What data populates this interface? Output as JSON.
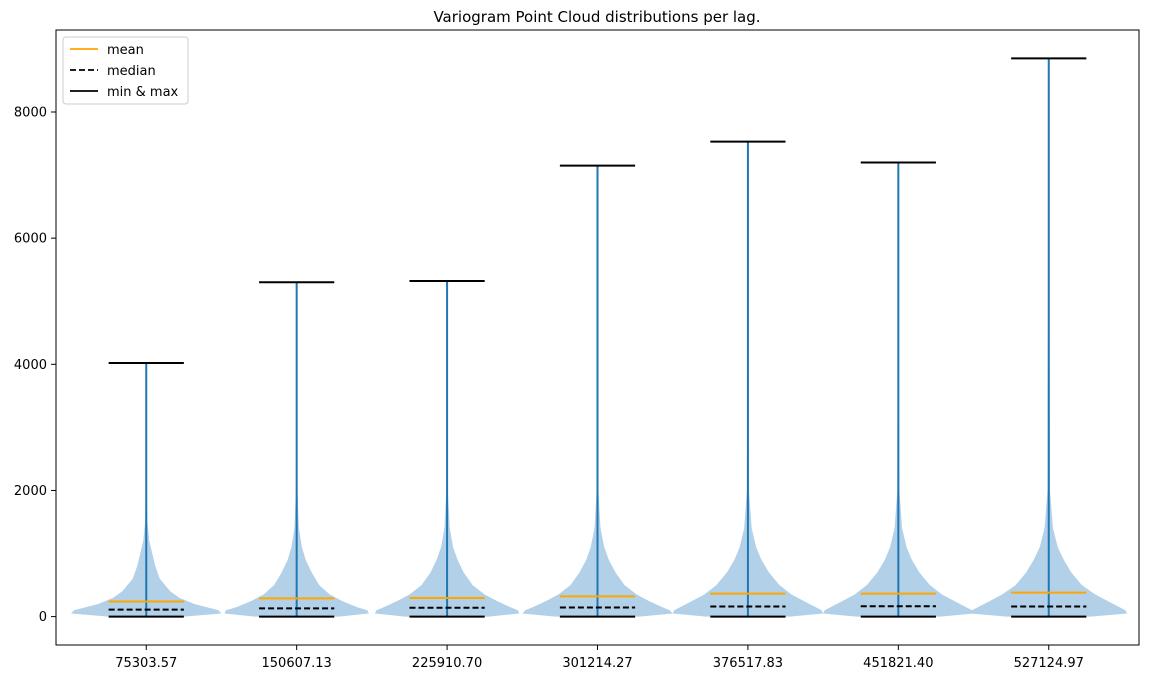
{
  "chart_data": {
    "type": "violin",
    "title": "Variogram Point Cloud distributions per lag.",
    "xlabel": "",
    "ylabel": "",
    "categories": [
      "75303.57",
      "150607.13",
      "225910.70",
      "301214.27",
      "376517.83",
      "451821.40",
      "527124.97"
    ],
    "y_ticks": [
      0,
      2000,
      4000,
      6000,
      8000
    ],
    "ylim": [
      -450,
      9300
    ],
    "grid": false,
    "legend_position": "top-left",
    "legend": [
      {
        "label": "mean",
        "style": "solid",
        "color": "#ffa500"
      },
      {
        "label": "median",
        "style": "dashed",
        "color": "#000000"
      },
      {
        "label": "min & max",
        "style": "solid",
        "color": "#000000"
      }
    ],
    "series": [
      {
        "category": "75303.57",
        "min": 0,
        "max": 4020,
        "mean": 240,
        "median": 110,
        "shape": [
          [
            0,
            0.25
          ],
          [
            50,
            0.5
          ],
          [
            100,
            0.48
          ],
          [
            150,
            0.4
          ],
          [
            200,
            0.32
          ],
          [
            300,
            0.22
          ],
          [
            400,
            0.16
          ],
          [
            600,
            0.09
          ],
          [
            800,
            0.06
          ],
          [
            1000,
            0.04
          ],
          [
            1200,
            0.02
          ],
          [
            1500,
            0.008
          ],
          [
            2000,
            0.003
          ],
          [
            4020,
            0.001
          ]
        ]
      },
      {
        "category": "150607.13",
        "min": 0,
        "max": 5300,
        "mean": 290,
        "median": 130,
        "shape": [
          [
            0,
            0.28
          ],
          [
            50,
            0.48
          ],
          [
            100,
            0.47
          ],
          [
            150,
            0.4
          ],
          [
            250,
            0.3
          ],
          [
            350,
            0.22
          ],
          [
            500,
            0.15
          ],
          [
            700,
            0.1
          ],
          [
            900,
            0.06
          ],
          [
            1100,
            0.035
          ],
          [
            1400,
            0.015
          ],
          [
            2000,
            0.005
          ],
          [
            5300,
            0.001
          ]
        ]
      },
      {
        "category": "225910.70",
        "min": 0,
        "max": 5320,
        "mean": 295,
        "median": 140,
        "shape": [
          [
            0,
            0.28
          ],
          [
            50,
            0.48
          ],
          [
            100,
            0.47
          ],
          [
            150,
            0.42
          ],
          [
            250,
            0.33
          ],
          [
            350,
            0.25
          ],
          [
            500,
            0.17
          ],
          [
            700,
            0.11
          ],
          [
            900,
            0.07
          ],
          [
            1100,
            0.04
          ],
          [
            1400,
            0.018
          ],
          [
            2000,
            0.005
          ],
          [
            5320,
            0.001
          ]
        ]
      },
      {
        "category": "301214.27",
        "min": 0,
        "max": 7150,
        "mean": 320,
        "median": 145,
        "shape": [
          [
            0,
            0.28
          ],
          [
            50,
            0.5
          ],
          [
            100,
            0.48
          ],
          [
            150,
            0.43
          ],
          [
            250,
            0.34
          ],
          [
            350,
            0.26
          ],
          [
            500,
            0.18
          ],
          [
            700,
            0.12
          ],
          [
            900,
            0.075
          ],
          [
            1100,
            0.045
          ],
          [
            1400,
            0.02
          ],
          [
            2000,
            0.006
          ],
          [
            7150,
            0.001
          ]
        ]
      },
      {
        "category": "376517.83",
        "min": 0,
        "max": 7530,
        "mean": 365,
        "median": 160,
        "shape": [
          [
            0,
            0.28
          ],
          [
            50,
            0.5
          ],
          [
            100,
            0.49
          ],
          [
            150,
            0.45
          ],
          [
            250,
            0.37
          ],
          [
            350,
            0.29
          ],
          [
            500,
            0.21
          ],
          [
            700,
            0.14
          ],
          [
            900,
            0.09
          ],
          [
            1100,
            0.055
          ],
          [
            1400,
            0.025
          ],
          [
            2000,
            0.007
          ],
          [
            7530,
            0.001
          ]
        ]
      },
      {
        "category": "451821.40",
        "min": 0,
        "max": 7200,
        "mean": 365,
        "median": 165,
        "shape": [
          [
            0,
            0.28
          ],
          [
            50,
            0.5
          ],
          [
            100,
            0.49
          ],
          [
            150,
            0.45
          ],
          [
            250,
            0.37
          ],
          [
            350,
            0.29
          ],
          [
            500,
            0.21
          ],
          [
            700,
            0.14
          ],
          [
            900,
            0.09
          ],
          [
            1100,
            0.055
          ],
          [
            1400,
            0.025
          ],
          [
            2000,
            0.007
          ],
          [
            7200,
            0.001
          ]
        ]
      },
      {
        "category": "527124.97",
        "min": 0,
        "max": 8850,
        "mean": 380,
        "median": 160,
        "shape": [
          [
            0,
            0.28
          ],
          [
            50,
            0.52
          ],
          [
            100,
            0.51
          ],
          [
            150,
            0.47
          ],
          [
            250,
            0.39
          ],
          [
            350,
            0.31
          ],
          [
            500,
            0.22
          ],
          [
            700,
            0.15
          ],
          [
            900,
            0.1
          ],
          [
            1100,
            0.06
          ],
          [
            1400,
            0.028
          ],
          [
            2000,
            0.008
          ],
          [
            8850,
            0.001
          ]
        ]
      }
    ],
    "colors": {
      "violin_fill": "#aecde6",
      "stem": "#1f77b4",
      "mean": "#ffa500",
      "median": "#000000",
      "minmax": "#000000"
    }
  }
}
